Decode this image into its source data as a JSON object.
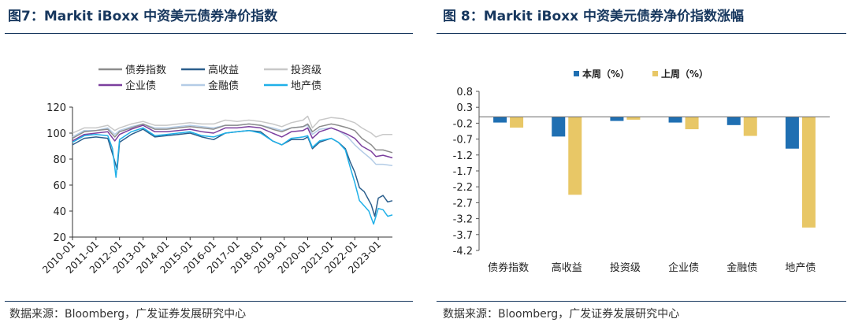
{
  "left": {
    "title": "图7：Markit iBoxx  中资美元债券净价指数",
    "source": "数据来源：Bloomberg，广发证券发展研究中心"
  },
  "right": {
    "title": "图 8：Markit iBoxx  中资美元债券净价指数涨幅",
    "source": "数据来源：Bloomberg，广发证券发展研究中心"
  },
  "chart_data": [
    {
      "type": "line",
      "title": "Markit iBoxx 中资美元债券净价指数",
      "ylim": [
        20,
        120
      ],
      "yticks": [
        "20",
        "40",
        "60",
        "80",
        "100",
        "120"
      ],
      "xticks": [
        "2010-01",
        "2011-01",
        "2012-01",
        "2013-01",
        "2014-01",
        "2015-01",
        "2016-01",
        "2017-01",
        "2018-01",
        "2019-01",
        "2020-01",
        "2021-01",
        "2022-01",
        "2023-01"
      ],
      "xrange": [
        2010.0,
        2023.6
      ],
      "legend": [
        "债券指数",
        "高收益",
        "投资级",
        "企业债",
        "金融债",
        "地产债"
      ],
      "series": [
        {
          "name": "债券指数",
          "color": "#8c8c8c",
          "points": [
            [
              2010.0,
              96
            ],
            [
              2010.5,
              101
            ],
            [
              2011.0,
              102
            ],
            [
              2011.5,
              103
            ],
            [
              2011.8,
              97
            ],
            [
              2012.0,
              101
            ],
            [
              2012.5,
              104
            ],
            [
              2013.0,
              107
            ],
            [
              2013.5,
              103
            ],
            [
              2014.0,
              103
            ],
            [
              2014.5,
              104
            ],
            [
              2015.0,
              105
            ],
            [
              2015.5,
              104
            ],
            [
              2016.0,
              103
            ],
            [
              2016.5,
              106
            ],
            [
              2017.0,
              106
            ],
            [
              2017.5,
              107
            ],
            [
              2018.0,
              106
            ],
            [
              2018.5,
              103
            ],
            [
              2018.9,
              101
            ],
            [
              2019.3,
              104
            ],
            [
              2019.8,
              105
            ],
            [
              2020.0,
              107
            ],
            [
              2020.2,
              101
            ],
            [
              2020.5,
              105
            ],
            [
              2021.0,
              107
            ],
            [
              2021.3,
              106
            ],
            [
              2021.7,
              104
            ],
            [
              2022.0,
              102
            ],
            [
              2022.3,
              96
            ],
            [
              2022.7,
              91
            ],
            [
              2022.9,
              87
            ],
            [
              2023.2,
              87
            ],
            [
              2023.6,
              85
            ]
          ]
        },
        {
          "name": "高收益",
          "color": "#2b5e8c",
          "points": [
            [
              2010.0,
              91
            ],
            [
              2010.5,
              96
            ],
            [
              2011.0,
              97
            ],
            [
              2011.5,
              96
            ],
            [
              2011.7,
              84
            ],
            [
              2011.9,
              72
            ],
            [
              2012.0,
              93
            ],
            [
              2012.5,
              99
            ],
            [
              2013.0,
              103
            ],
            [
              2013.5,
              97
            ],
            [
              2014.0,
              98
            ],
            [
              2014.5,
              99
            ],
            [
              2015.0,
              100
            ],
            [
              2015.5,
              97
            ],
            [
              2016.0,
              95
            ],
            [
              2016.5,
              100
            ],
            [
              2017.0,
              101
            ],
            [
              2017.5,
              102
            ],
            [
              2018.0,
              101
            ],
            [
              2018.5,
              94
            ],
            [
              2018.9,
              91
            ],
            [
              2019.3,
              95
            ],
            [
              2019.8,
              95
            ],
            [
              2020.0,
              97
            ],
            [
              2020.2,
              88
            ],
            [
              2020.5,
              93
            ],
            [
              2021.0,
              96
            ],
            [
              2021.3,
              93
            ],
            [
              2021.6,
              88
            ],
            [
              2021.8,
              78
            ],
            [
              2022.0,
              70
            ],
            [
              2022.2,
              58
            ],
            [
              2022.4,
              55
            ],
            [
              2022.7,
              45
            ],
            [
              2022.85,
              36
            ],
            [
              2023.0,
              50
            ],
            [
              2023.2,
              52
            ],
            [
              2023.4,
              47
            ],
            [
              2023.6,
              48
            ]
          ]
        },
        {
          "name": "投资级",
          "color": "#c8c8c8",
          "points": [
            [
              2010.0,
              100
            ],
            [
              2010.5,
              104
            ],
            [
              2011.0,
              104
            ],
            [
              2011.5,
              106
            ],
            [
              2011.8,
              102
            ],
            [
              2012.0,
              104
            ],
            [
              2012.5,
              107
            ],
            [
              2013.0,
              109
            ],
            [
              2013.5,
              106
            ],
            [
              2014.0,
              106
            ],
            [
              2014.5,
              107
            ],
            [
              2015.0,
              108
            ],
            [
              2015.5,
              107
            ],
            [
              2016.0,
              107
            ],
            [
              2016.5,
              110
            ],
            [
              2017.0,
              109
            ],
            [
              2017.5,
              110
            ],
            [
              2018.0,
              109
            ],
            [
              2018.5,
              107
            ],
            [
              2018.9,
              105
            ],
            [
              2019.3,
              108
            ],
            [
              2019.8,
              110
            ],
            [
              2020.0,
              113
            ],
            [
              2020.2,
              104
            ],
            [
              2020.5,
              110
            ],
            [
              2021.0,
              112
            ],
            [
              2021.5,
              111
            ],
            [
              2022.0,
              108
            ],
            [
              2022.3,
              104
            ],
            [
              2022.7,
              100
            ],
            [
              2022.9,
              97
            ],
            [
              2023.2,
              99
            ],
            [
              2023.6,
              99
            ]
          ]
        },
        {
          "name": "企业债",
          "color": "#7b3f9e",
          "points": [
            [
              2010.0,
              94
            ],
            [
              2010.5,
              99
            ],
            [
              2011.0,
              100
            ],
            [
              2011.5,
              101
            ],
            [
              2011.8,
              94
            ],
            [
              2012.0,
              99
            ],
            [
              2012.5,
              103
            ],
            [
              2013.0,
              106
            ],
            [
              2013.5,
              101
            ],
            [
              2014.0,
              101
            ],
            [
              2014.5,
              102
            ],
            [
              2015.0,
              103
            ],
            [
              2015.5,
              101
            ],
            [
              2016.0,
              100
            ],
            [
              2016.5,
              104
            ],
            [
              2017.0,
              104
            ],
            [
              2017.5,
              105
            ],
            [
              2018.0,
              104
            ],
            [
              2018.5,
              100
            ],
            [
              2018.9,
              97
            ],
            [
              2019.3,
              101
            ],
            [
              2019.8,
              102
            ],
            [
              2020.0,
              104
            ],
            [
              2020.2,
              96
            ],
            [
              2020.5,
              101
            ],
            [
              2021.0,
              104
            ],
            [
              2021.3,
              102
            ],
            [
              2021.7,
              99
            ],
            [
              2022.0,
              96
            ],
            [
              2022.3,
              90
            ],
            [
              2022.7,
              86
            ],
            [
              2022.9,
              82
            ],
            [
              2023.2,
              83
            ],
            [
              2023.6,
              81
            ]
          ]
        },
        {
          "name": "金融债",
          "color": "#b4cce6",
          "points": [
            [
              2010.0,
              97
            ],
            [
              2010.5,
              102
            ],
            [
              2011.0,
              102
            ],
            [
              2011.5,
              104
            ],
            [
              2011.8,
              99
            ],
            [
              2012.0,
              102
            ],
            [
              2012.5,
              105
            ],
            [
              2013.0,
              107
            ],
            [
              2013.5,
              104
            ],
            [
              2014.0,
              104
            ],
            [
              2014.5,
              105
            ],
            [
              2015.0,
              106
            ],
            [
              2015.5,
              105
            ],
            [
              2016.0,
              104
            ],
            [
              2016.5,
              106
            ],
            [
              2017.0,
              106
            ],
            [
              2017.5,
              107
            ],
            [
              2018.0,
              106
            ],
            [
              2018.5,
              104
            ],
            [
              2018.9,
              102
            ],
            [
              2019.3,
              104
            ],
            [
              2019.8,
              105
            ],
            [
              2020.0,
              106
            ],
            [
              2020.2,
              99
            ],
            [
              2020.5,
              103
            ],
            [
              2021.0,
              104
            ],
            [
              2021.3,
              102
            ],
            [
              2021.7,
              97
            ],
            [
              2022.0,
              91
            ],
            [
              2022.3,
              86
            ],
            [
              2022.7,
              80
            ],
            [
              2022.9,
              76
            ],
            [
              2023.2,
              76
            ],
            [
              2023.6,
              75
            ]
          ]
        },
        {
          "name": "地产债",
          "color": "#1fb0e8",
          "points": [
            [
              2010.0,
              93
            ],
            [
              2010.5,
              98
            ],
            [
              2011.0,
              99
            ],
            [
              2011.5,
              98
            ],
            [
              2011.7,
              88
            ],
            [
              2011.85,
              66
            ],
            [
              2012.0,
              95
            ],
            [
              2012.5,
              101
            ],
            [
              2013.0,
              104
            ],
            [
              2013.5,
              98
            ],
            [
              2014.0,
              99
            ],
            [
              2014.5,
              100
            ],
            [
              2015.0,
              101
            ],
            [
              2015.5,
              98
            ],
            [
              2016.0,
              97
            ],
            [
              2016.5,
              100
            ],
            [
              2017.0,
              101
            ],
            [
              2017.5,
              102
            ],
            [
              2018.0,
              100
            ],
            [
              2018.5,
              94
            ],
            [
              2018.9,
              91
            ],
            [
              2019.3,
              96
            ],
            [
              2019.8,
              97
            ],
            [
              2020.0,
              98
            ],
            [
              2020.2,
              89
            ],
            [
              2020.5,
              94
            ],
            [
              2021.0,
              96
            ],
            [
              2021.3,
              93
            ],
            [
              2021.6,
              87
            ],
            [
              2021.8,
              74
            ],
            [
              2022.0,
              62
            ],
            [
              2022.2,
              48
            ],
            [
              2022.4,
              44
            ],
            [
              2022.6,
              40
            ],
            [
              2022.8,
              30
            ],
            [
              2023.0,
              42
            ],
            [
              2023.2,
              41
            ],
            [
              2023.4,
              36
            ],
            [
              2023.6,
              37
            ]
          ]
        }
      ]
    },
    {
      "type": "bar",
      "title": "Markit iBoxx 中资美元债券净价指数涨幅",
      "categories": [
        "债券指数",
        "高收益",
        "投资级",
        "企业债",
        "金融债",
        "地产债"
      ],
      "ylim": [
        -4.2,
        0.8
      ],
      "yticks": [
        "0.8",
        "0.3",
        "-0.2",
        "-0.7",
        "-1.2",
        "-1.7",
        "-2.2",
        "-2.7",
        "-3.2",
        "-3.7",
        "-4.2"
      ],
      "series": [
        {
          "name": "本周（%）",
          "color": "#1f6fb2",
          "values": [
            -0.18,
            -0.62,
            -0.13,
            -0.18,
            -0.26,
            -1.0
          ]
        },
        {
          "name": "上周（%）",
          "color": "#e8c766",
          "values": [
            -0.34,
            -2.45,
            -0.09,
            -0.39,
            -0.6,
            -3.48
          ]
        }
      ]
    }
  ]
}
